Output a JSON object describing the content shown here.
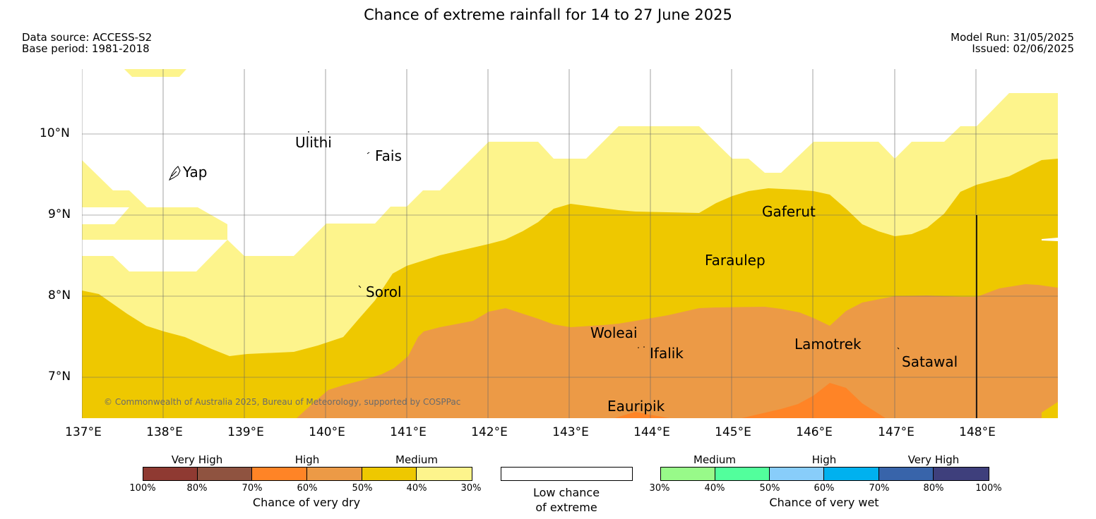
{
  "title": "Chance of extreme rainfall for 14 to 27 June 2025",
  "data_source": "Data source: ACCESS-S2",
  "base_period": "Base period: 1981-2018",
  "model_run": "Model Run: 31/05/2025",
  "issued": "Issued: 02/06/2025",
  "copyright": "© Commonwealth of Australia 2025, Bureau of Meteorology, supported by COSPPac",
  "axes": {
    "lat_labels": [
      "10°N",
      "9°N",
      "8°N",
      "7°N"
    ],
    "lon_labels": [
      "137°E",
      "138°E",
      "139°E",
      "140°E",
      "141°E",
      "142°E",
      "143°E",
      "144°E",
      "145°E",
      "146°E",
      "147°E",
      "148°E"
    ]
  },
  "places": [
    {
      "name": "Ulithi"
    },
    {
      "name": "Fais"
    },
    {
      "name": "Yap"
    },
    {
      "name": "Gaferut"
    },
    {
      "name": "Faraulep"
    },
    {
      "name": "Sorol"
    },
    {
      "name": "Woleai"
    },
    {
      "name": "Ifalik"
    },
    {
      "name": "Lamotrek"
    },
    {
      "name": "Satawal"
    },
    {
      "name": "Eauripik"
    }
  ],
  "colors": {
    "dry_70_80": "#ff8426",
    "dry_60_70": "#ec9a46",
    "dry_50_60": "#eec800",
    "dry_40_50": "#fdf48c",
    "dry_30_40": "#fdf48c",
    "land": "#ffffff"
  },
  "legend": {
    "dry": {
      "title": "Chance of very dry",
      "categories": [
        "Very High",
        "High",
        "Medium"
      ],
      "ticks": [
        "100%",
        "80%",
        "70%",
        "60%",
        "50%",
        "40%",
        "30%"
      ],
      "colors": [
        "#8f3a32",
        "#8f5340",
        "#ff8426",
        "#ec9a46",
        "#eec800",
        "#fdf48c"
      ]
    },
    "low": {
      "label_line1": "Low chance",
      "label_line2": "of extreme"
    },
    "wet": {
      "title": "Chance of very wet",
      "categories": [
        "Medium",
        "High",
        "Very High"
      ],
      "ticks": [
        "30%",
        "40%",
        "50%",
        "60%",
        "70%",
        "80%",
        "100%"
      ],
      "colors": [
        "#98fa89",
        "#52ff9c",
        "#88cdfa",
        "#00b1ef",
        "#3864aa",
        "#3e3f7c"
      ]
    }
  }
}
